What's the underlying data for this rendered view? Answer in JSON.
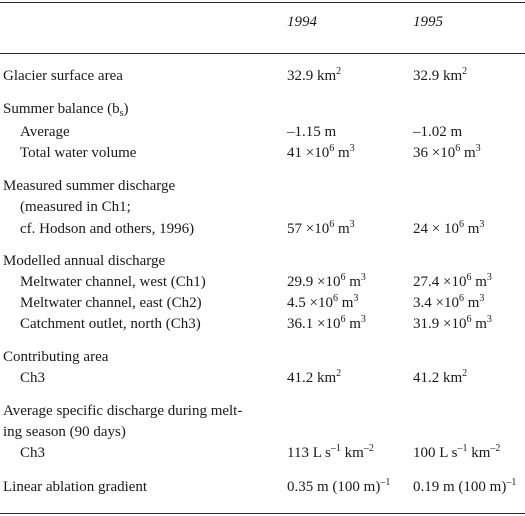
{
  "header": {
    "col1": "1994",
    "col2": "1995"
  },
  "rows": [
    {
      "label": "Glacier surface area",
      "v1": "32.9 km",
      "v1_sup": "2",
      "v2": "32.9 km",
      "v2_sup": "2"
    },
    {
      "label_pre": "Summer balance (b",
      "label_sub": "s",
      "label_post": ")"
    },
    {
      "label": "Average",
      "v1": "–1.15 m",
      "v2": "–1.02 m"
    },
    {
      "label": "Total water volume",
      "v1_pre": "41 ×10",
      "v1_sup1": "6",
      "v1_mid": " m",
      "v1_sup2": "3",
      "v2_pre": "36 ×10",
      "v2_sup1": "6",
      "v2_mid": " m",
      "v2_sup2": "3"
    },
    {
      "label": "Measured summer discharge"
    },
    {
      "label": "(measured in Ch1;"
    },
    {
      "label": "cf. Hodson and others, 1996)",
      "v1_pre": "57 ×10",
      "v1_sup1": "6",
      "v1_mid": " m",
      "v1_sup2": "3",
      "v2_pre": "24 × 10",
      "v2_sup1": "6",
      "v2_mid": " m",
      "v2_sup2": "3"
    },
    {
      "label": "Modelled annual discharge"
    },
    {
      "label": "Meltwater channel, west (Ch1)",
      "v1_pre": "29.9 ×10",
      "v1_sup1": "6",
      "v1_mid": " m",
      "v1_sup2": "3",
      "v2_pre": "27.4 ×10",
      "v2_sup1": "6",
      "v2_mid": " m",
      "v2_sup2": "3"
    },
    {
      "label": "Meltwater channel, east (Ch2)",
      "v1_pre": "4.5 ×10",
      "v1_sup1": "6",
      "v1_mid": " m",
      "v1_sup2": "3",
      "v2_pre": "3.4 ×10",
      "v2_sup1": "6",
      "v2_mid": " m",
      "v2_sup2": "3"
    },
    {
      "label": "Catchment outlet, north (Ch3)",
      "v1_pre": "36.1 ×10",
      "v1_sup1": "6",
      "v1_mid": " m",
      "v1_sup2": "3",
      "v2_pre": "31.9 ×10",
      "v2_sup1": "6",
      "v2_mid": " m",
      "v2_sup2": "3"
    },
    {
      "label": "Contributing area"
    },
    {
      "label": "Ch3",
      "v1": "41.2 km",
      "v1_sup": "2",
      "v2": "41.2 km",
      "v2_sup": "2"
    },
    {
      "label": "Average specific discharge during melt-"
    },
    {
      "label": "ing season (90 days)"
    },
    {
      "label": "Ch3",
      "v1_a": "113 L s",
      "v1_s1": "–1",
      "v1_b": " km",
      "v1_s2": "–2",
      "v2_a": "100 L s",
      "v2_s1": "–1",
      "v2_b": " km",
      "v2_s2": "–2"
    },
    {
      "label": "Linear ablation gradient",
      "v1_a": "0.35 m (100 m)",
      "v1_s1": "–1",
      "v2_a": "0.19 m (100 m)",
      "v2_s1": "–1"
    }
  ]
}
